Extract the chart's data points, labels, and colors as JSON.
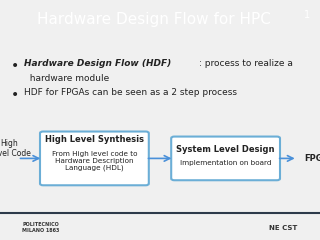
{
  "title": "Hardware Design Flow for HPC",
  "slide_number": "1",
  "title_bg": "#2d3a4a",
  "title_color": "#ffffff",
  "body_bg": "#f0f0f0",
  "bullet1_italic": "Hardware Design Flow (HDF)",
  "bullet1_rest": ": process to realize a\nhardware module",
  "bullet2": "HDF for FPGAs can be seen as a 2 step process",
  "box1_title": "High Level Synthesis",
  "box1_sub": "From High level code to\nHardware Description\nLanguage (HDL)",
  "box2_title": "System Level Design",
  "box2_sub": "Implementation on board",
  "box_border": "#6baed6",
  "box_bg": "#ffffff",
  "label_left": "High\nLevel Code",
  "label_right": "FPGA",
  "arrow_color": "#4a90d9",
  "footer_line_color": "#2d3a4a",
  "text_color": "#222222"
}
